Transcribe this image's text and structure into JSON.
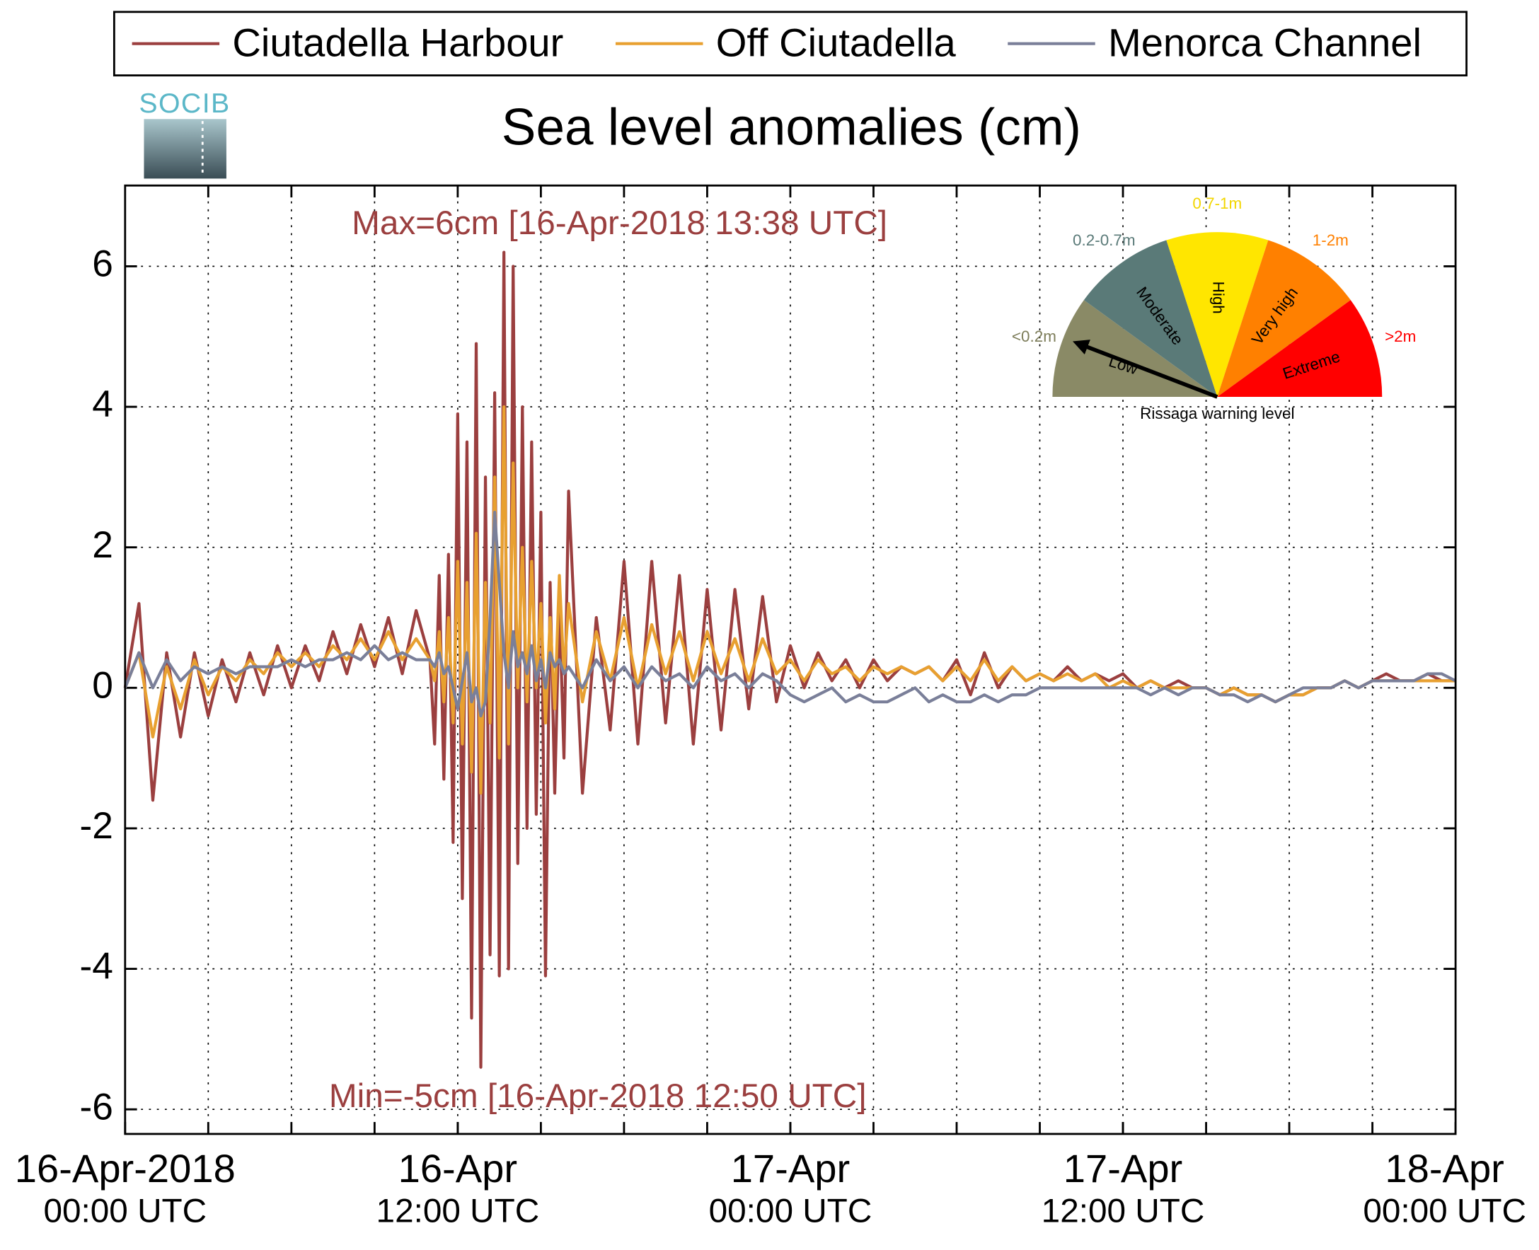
{
  "chart_data": {
    "type": "line",
    "title": "Sea level anomalies (cm)",
    "logo": "SOCIB",
    "annotations": {
      "max": {
        "text": "Max=6cm [16-Apr-2018 13:38 UTC]",
        "x": "2018-04-16T13:38",
        "color": "#9b3f3f"
      },
      "min": {
        "text": "Min=-5cm [16-Apr-2018 12:50 UTC]",
        "x": "2018-04-16T12:50",
        "color": "#9b3f3f"
      }
    },
    "x": [
      "2018-04-16T00:00",
      "2018-04-16T00:30",
      "2018-04-16T01:00",
      "2018-04-16T01:30",
      "2018-04-16T02:00",
      "2018-04-16T02:30",
      "2018-04-16T03:00",
      "2018-04-16T03:30",
      "2018-04-16T04:00",
      "2018-04-16T04:30",
      "2018-04-16T05:00",
      "2018-04-16T05:30",
      "2018-04-16T06:00",
      "2018-04-16T06:30",
      "2018-04-16T07:00",
      "2018-04-16T07:30",
      "2018-04-16T08:00",
      "2018-04-16T08:30",
      "2018-04-16T09:00",
      "2018-04-16T09:30",
      "2018-04-16T10:00",
      "2018-04-16T10:30",
      "2018-04-16T11:00",
      "2018-04-16T11:10",
      "2018-04-16T11:20",
      "2018-04-16T11:30",
      "2018-04-16T11:40",
      "2018-04-16T11:50",
      "2018-04-16T12:00",
      "2018-04-16T12:10",
      "2018-04-16T12:20",
      "2018-04-16T12:30",
      "2018-04-16T12:40",
      "2018-04-16T12:50",
      "2018-04-16T13:00",
      "2018-04-16T13:10",
      "2018-04-16T13:20",
      "2018-04-16T13:30",
      "2018-04-16T13:40",
      "2018-04-16T13:50",
      "2018-04-16T14:00",
      "2018-04-16T14:10",
      "2018-04-16T14:20",
      "2018-04-16T14:30",
      "2018-04-16T14:40",
      "2018-04-16T14:50",
      "2018-04-16T15:00",
      "2018-04-16T15:10",
      "2018-04-16T15:20",
      "2018-04-16T15:30",
      "2018-04-16T15:40",
      "2018-04-16T15:50",
      "2018-04-16T16:00",
      "2018-04-16T16:30",
      "2018-04-16T17:00",
      "2018-04-16T17:30",
      "2018-04-16T18:00",
      "2018-04-16T18:30",
      "2018-04-16T19:00",
      "2018-04-16T19:30",
      "2018-04-16T20:00",
      "2018-04-16T20:30",
      "2018-04-16T21:00",
      "2018-04-16T21:30",
      "2018-04-16T22:00",
      "2018-04-16T22:30",
      "2018-04-16T23:00",
      "2018-04-16T23:30",
      "2018-04-17T00:00",
      "2018-04-17T00:30",
      "2018-04-17T01:00",
      "2018-04-17T01:30",
      "2018-04-17T02:00",
      "2018-04-17T02:30",
      "2018-04-17T03:00",
      "2018-04-17T03:30",
      "2018-04-17T04:00",
      "2018-04-17T04:30",
      "2018-04-17T05:00",
      "2018-04-17T05:30",
      "2018-04-17T06:00",
      "2018-04-17T06:30",
      "2018-04-17T07:00",
      "2018-04-17T07:30",
      "2018-04-17T08:00",
      "2018-04-17T08:30",
      "2018-04-17T09:00",
      "2018-04-17T09:30",
      "2018-04-17T10:00",
      "2018-04-17T10:30",
      "2018-04-17T11:00",
      "2018-04-17T11:30",
      "2018-04-17T12:00",
      "2018-04-17T12:30",
      "2018-04-17T13:00",
      "2018-04-17T13:30",
      "2018-04-17T14:00",
      "2018-04-17T14:30",
      "2018-04-17T15:00",
      "2018-04-17T15:30",
      "2018-04-17T16:00",
      "2018-04-17T16:30",
      "2018-04-17T17:00",
      "2018-04-17T17:30",
      "2018-04-17T18:00",
      "2018-04-17T18:30",
      "2018-04-17T19:00",
      "2018-04-17T19:30",
      "2018-04-17T20:00",
      "2018-04-17T20:30",
      "2018-04-17T21:00",
      "2018-04-17T21:30",
      "2018-04-17T22:00",
      "2018-04-17T22:30",
      "2018-04-17T23:00",
      "2018-04-17T23:30",
      "2018-04-18T00:00"
    ],
    "series": [
      {
        "name": "Ciutadella Harbour",
        "color": "#9b3f3f",
        "values": [
          0,
          1.2,
          -1.6,
          0.5,
          -0.7,
          0.5,
          -0.4,
          0.4,
          -0.2,
          0.5,
          -0.1,
          0.6,
          0.0,
          0.6,
          0.1,
          0.8,
          0.2,
          0.9,
          0.3,
          1.0,
          0.2,
          1.1,
          0.4,
          -0.8,
          1.6,
          -1.3,
          1.9,
          -2.2,
          3.9,
          -3.0,
          3.5,
          -4.7,
          4.9,
          -5.4,
          3.0,
          -3.8,
          4.2,
          -4.1,
          6.2,
          -4.0,
          6.0,
          -2.5,
          4.0,
          -2.0,
          3.5,
          -1.8,
          2.5,
          -4.1,
          1.5,
          -1.5,
          1.2,
          -1.0,
          2.8,
          -1.5,
          1.0,
          -0.6,
          1.8,
          -0.8,
          1.8,
          -0.5,
          1.6,
          -0.8,
          1.4,
          -0.6,
          1.4,
          -0.3,
          1.3,
          -0.2,
          0.6,
          0.0,
          0.5,
          0.1,
          0.4,
          0.0,
          0.4,
          0.1,
          0.3,
          0.2,
          0.3,
          0.1,
          0.4,
          -0.1,
          0.5,
          0.0,
          0.3,
          0.1,
          0.2,
          0.1,
          0.3,
          0.1,
          0.2,
          0.1,
          0.2,
          0.0,
          0.1,
          0.0,
          0.1,
          0.0,
          0.0,
          -0.1,
          0.0,
          -0.1,
          -0.1,
          -0.2,
          -0.1,
          -0.1,
          0.0,
          0.0,
          0.1,
          0.0,
          0.1,
          0.2,
          0.1,
          0.1,
          0.2,
          0.1,
          0.1
        ]
      },
      {
        "name": "Off Ciutadella",
        "color": "#e8a030",
        "values": [
          0,
          0.5,
          -0.7,
          0.3,
          -0.3,
          0.4,
          -0.1,
          0.3,
          0.1,
          0.4,
          0.2,
          0.5,
          0.3,
          0.5,
          0.3,
          0.6,
          0.4,
          0.7,
          0.4,
          0.8,
          0.4,
          0.7,
          0.4,
          0.1,
          0.8,
          -0.2,
          1.0,
          -0.5,
          1.8,
          -0.8,
          1.5,
          -1.2,
          2.2,
          -1.5,
          1.5,
          -0.5,
          3.0,
          -1.0,
          4.0,
          -0.8,
          3.2,
          0.0,
          2.0,
          -0.2,
          1.8,
          0.0,
          1.2,
          -0.5,
          1.0,
          -0.3,
          1.6,
          0.2,
          1.2,
          -0.2,
          0.8,
          0.1,
          1.0,
          0.0,
          0.9,
          0.2,
          0.8,
          0.1,
          0.8,
          0.2,
          0.7,
          0.1,
          0.7,
          0.2,
          0.4,
          0.1,
          0.4,
          0.2,
          0.3,
          0.1,
          0.3,
          0.2,
          0.3,
          0.2,
          0.3,
          0.1,
          0.3,
          0.1,
          0.4,
          0.1,
          0.3,
          0.1,
          0.2,
          0.1,
          0.2,
          0.1,
          0.2,
          0.0,
          0.1,
          0.0,
          0.1,
          0.0,
          0.0,
          0.0,
          0.0,
          -0.1,
          0.0,
          -0.1,
          -0.1,
          -0.2,
          -0.1,
          -0.1,
          0.0,
          0.0,
          0.1,
          0.0,
          0.1,
          0.1,
          0.1,
          0.1,
          0.1,
          0.1,
          0.1
        ]
      },
      {
        "name": "Menorca Channel",
        "color": "#7a7f99",
        "values": [
          0,
          0.5,
          0.0,
          0.4,
          0.1,
          0.3,
          0.2,
          0.3,
          0.2,
          0.3,
          0.3,
          0.3,
          0.4,
          0.3,
          0.4,
          0.4,
          0.5,
          0.4,
          0.6,
          0.4,
          0.5,
          0.4,
          0.4,
          0.3,
          0.5,
          0.2,
          0.3,
          0.0,
          -0.3,
          0.1,
          0.5,
          -0.2,
          0.0,
          -0.4,
          -0.2,
          1.0,
          2.5,
          1.5,
          0.5,
          0.0,
          0.8,
          0.3,
          0.5,
          0.2,
          0.6,
          0.1,
          0.4,
          0.0,
          0.5,
          0.3,
          0.4,
          0.2,
          0.3,
          0.0,
          0.4,
          0.1,
          0.3,
          0.0,
          0.3,
          0.1,
          0.2,
          0.0,
          0.3,
          0.1,
          0.2,
          0.0,
          0.2,
          0.1,
          -0.1,
          -0.2,
          -0.1,
          0.0,
          -0.2,
          -0.1,
          -0.2,
          -0.2,
          -0.1,
          0.0,
          -0.2,
          -0.1,
          -0.2,
          -0.2,
          -0.1,
          -0.2,
          -0.1,
          -0.1,
          0.0,
          0.0,
          0.0,
          0.0,
          0.0,
          0.0,
          0.0,
          0.0,
          -0.1,
          0.0,
          -0.1,
          0.0,
          0.0,
          -0.1,
          -0.1,
          -0.2,
          -0.1,
          -0.2,
          -0.1,
          0.0,
          0.0,
          0.0,
          0.1,
          0.0,
          0.1,
          0.1,
          0.1,
          0.1,
          0.2,
          0.2,
          0.1
        ]
      }
    ],
    "xlim": [
      "2018-04-16T00:00",
      "2018-04-18T00:00"
    ],
    "xticks": [
      {
        "value": "2018-04-16T00:00",
        "label": [
          "16-Apr-2018",
          "00:00 UTC"
        ]
      },
      {
        "value": "2018-04-16T12:00",
        "label": [
          "16-Apr",
          "12:00 UTC"
        ]
      },
      {
        "value": "2018-04-17T00:00",
        "label": [
          "17-Apr",
          "00:00 UTC"
        ]
      },
      {
        "value": "2018-04-17T12:00",
        "label": [
          "17-Apr",
          "12:00 UTC"
        ]
      },
      {
        "value": "2018-04-18T00:00",
        "label": [
          "18-Apr",
          "00:00 UTC"
        ]
      }
    ],
    "xminor_ticks": [
      "2018-04-16T03:00",
      "2018-04-16T06:00",
      "2018-04-16T09:00",
      "2018-04-16T12:00",
      "2018-04-16T15:00",
      "2018-04-16T18:00",
      "2018-04-16T21:00",
      "2018-04-17T00:00",
      "2018-04-17T03:00",
      "2018-04-17T06:00",
      "2018-04-17T09:00",
      "2018-04-17T12:00",
      "2018-04-17T15:00",
      "2018-04-17T18:00",
      "2018-04-17T21:00"
    ],
    "ylim": [
      -6.35,
      7.15
    ],
    "yticks": [
      -6,
      -4,
      -2,
      0,
      2,
      4,
      6
    ],
    "grid": true,
    "legend": "top",
    "gauge": {
      "label": "Rissaga warning level",
      "levels": [
        {
          "range": "<0.2m",
          "name": "Low",
          "color": "#8a8a66",
          "text_color": "#7d7d5a"
        },
        {
          "range": "0.2-0.7m",
          "name": "Moderate",
          "color": "#5a7a78",
          "text_color": "#5a7a78"
        },
        {
          "range": "0.7-1m",
          "name": "High",
          "color": "#ffe600",
          "text_color": "#f2d600"
        },
        {
          "range": "1-2m",
          "name": "Very high",
          "color": "#ff8000",
          "text_color": "#ff8000"
        },
        {
          "range": ">2m",
          "name": "Extreme",
          "color": "#ff0000",
          "text_color": "#ff0000"
        }
      ]
    }
  }
}
